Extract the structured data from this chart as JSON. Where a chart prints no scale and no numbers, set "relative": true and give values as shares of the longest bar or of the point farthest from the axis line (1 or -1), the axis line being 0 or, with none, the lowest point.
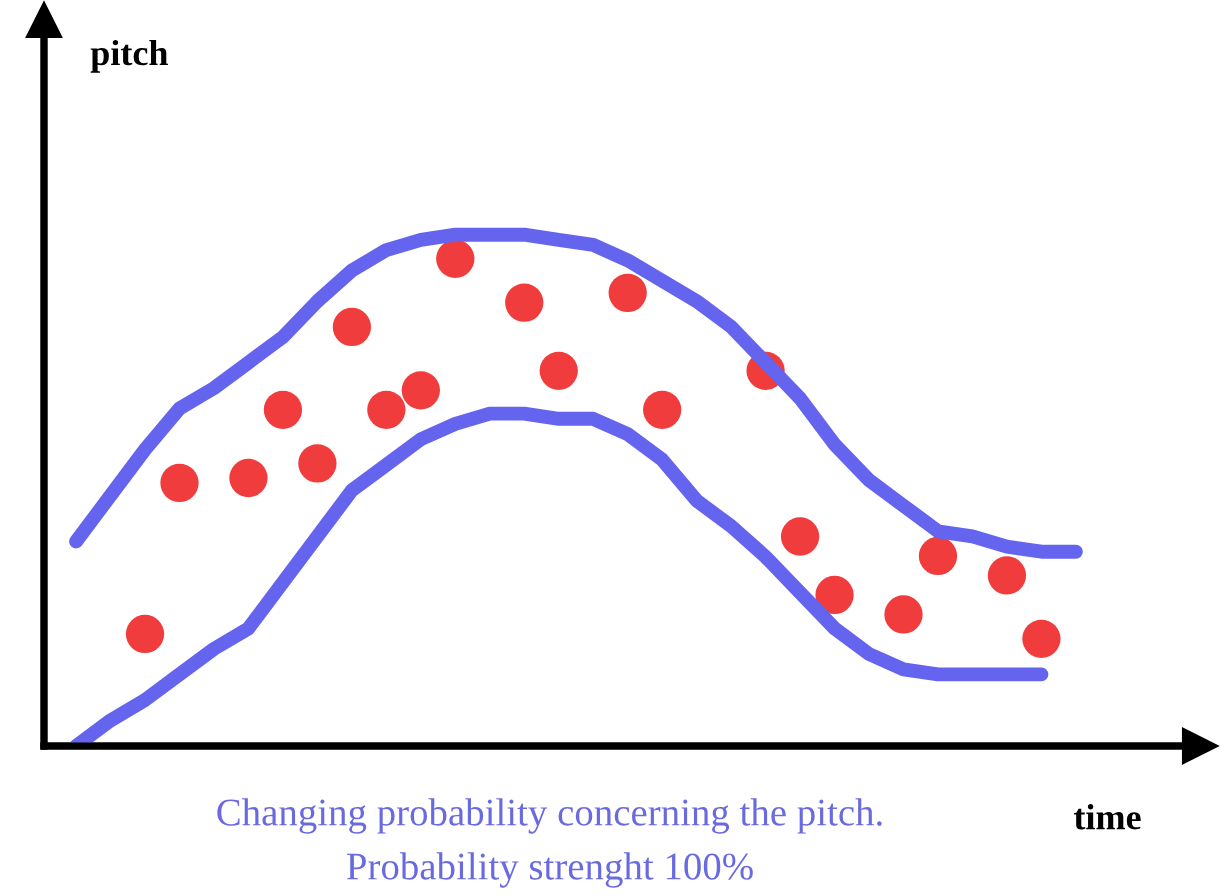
{
  "chart_data": [
    {
      "type": "line",
      "relative": true,
      "xlabel": "time",
      "ylabel": "pitch",
      "annotations": [
        "Changing probability concerning the pitch.",
        "Probability strenght 100%"
      ],
      "categories": [
        null,
        null,
        null,
        null,
        null,
        null,
        null,
        null,
        null,
        null,
        null,
        null,
        null,
        null,
        null,
        null,
        null,
        null,
        null,
        null,
        null,
        null,
        null,
        null,
        null,
        null,
        null,
        null,
        null,
        null
      ],
      "series": [
        {
          "color": "#6464ee",
          "values": [
            0.4,
            0.49,
            0.58,
            0.66,
            0.7,
            0.75,
            0.8,
            0.87,
            0.93,
            0.97,
            0.99,
            1.0,
            1.0,
            1.0,
            0.99,
            0.98,
            0.95,
            0.91,
            0.87,
            0.82,
            0.75,
            0.68,
            0.59,
            0.52,
            0.47,
            0.42,
            0.41,
            0.39,
            0.38,
            0.38
          ]
        },
        {
          "color": "#6464ee",
          "values": [
            0.0,
            0.05,
            0.09,
            0.14,
            0.19,
            0.23,
            0.32,
            0.41,
            0.5,
            0.55,
            0.6,
            0.63,
            0.65,
            0.65,
            0.64,
            0.64,
            0.61,
            0.56,
            0.48,
            0.43,
            0.37,
            0.3,
            0.23,
            0.18,
            0.15,
            0.14,
            0.14,
            0.14,
            0.14,
            null
          ]
        }
      ]
    },
    {
      "type": "scatter",
      "relative": true,
      "marker": "circle",
      "categories": [
        null,
        null,
        null,
        null,
        null,
        null,
        null,
        null,
        null,
        null,
        null,
        null,
        null,
        null,
        null,
        null,
        null,
        null,
        null,
        null,
        null,
        null,
        null,
        null,
        null,
        null,
        null,
        null,
        null,
        null
      ],
      "series": [
        {
          "color": "#f03c3c",
          "values": [
            null,
            null,
            0.23,
            0.54,
            null,
            0.55,
            0.69,
            0.58,
            0.86,
            0.69,
            0.73,
            1.0,
            null,
            0.91,
            0.77,
            null,
            0.93,
            0.69,
            null,
            null,
            0.77,
            0.43,
            0.31,
            null,
            0.27,
            0.39,
            null,
            0.35,
            0.22,
            null
          ]
        }
      ]
    }
  ]
}
